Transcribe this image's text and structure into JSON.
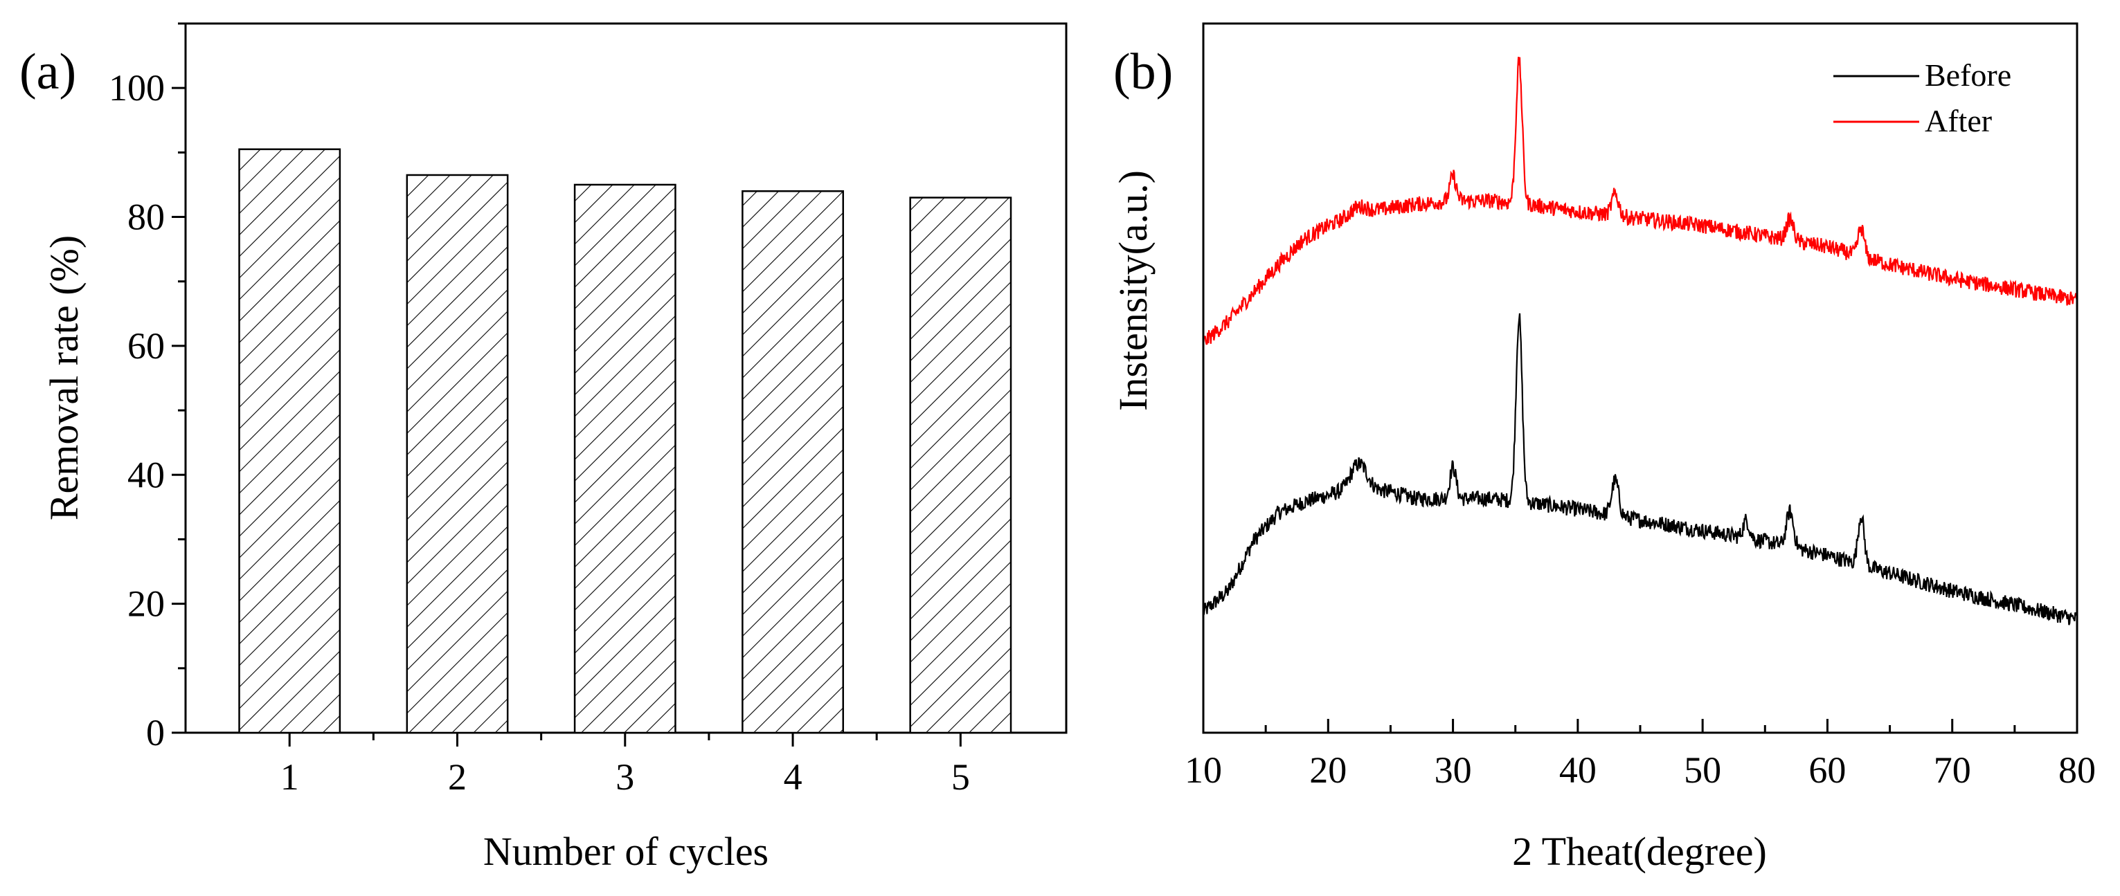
{
  "chart_data": [
    {
      "type": "bar",
      "panel_label": "(a)",
      "categories": [
        "1",
        "2",
        "3",
        "4",
        "5"
      ],
      "values": [
        90.5,
        86.5,
        85.0,
        84.0,
        83.0
      ],
      "xlabel": "Number of cycles",
      "ylabel": "Removal rate (%)",
      "ylim": [
        0,
        110
      ],
      "yticks": [
        "0",
        "20",
        "40",
        "60",
        "80",
        "100"
      ],
      "bar_fill": "hatched",
      "grid": false
    },
    {
      "type": "line",
      "panel_label": "(b)",
      "xlabel": "2 Theat(degree)",
      "ylabel": "Instensity(a.u.)",
      "xlim": [
        10,
        80
      ],
      "xticks": [
        "10",
        "20",
        "30",
        "40",
        "50",
        "60",
        "70",
        "80"
      ],
      "yticks_shown": false,
      "legend_position": "top-right",
      "grid": false,
      "series": [
        {
          "name": "Before",
          "color": "#000000",
          "offset": 0,
          "baseline": [
            [
              10,
              17
            ],
            [
              12,
              20
            ],
            [
              14,
              27
            ],
            [
              16,
              31
            ],
            [
              18,
              32.5
            ],
            [
              20,
              33.5
            ],
            [
              22,
              34.5
            ],
            [
              25,
              34
            ],
            [
              27,
              33
            ],
            [
              30,
              33
            ],
            [
              33,
              33
            ],
            [
              36,
              32.5
            ],
            [
              40,
              31.5
            ],
            [
              45,
              30
            ],
            [
              50,
              28.5
            ],
            [
              55,
              27
            ],
            [
              60,
              25
            ],
            [
              65,
              22.5
            ],
            [
              70,
              20
            ],
            [
              75,
              18
            ],
            [
              80,
              16
            ]
          ],
          "peaks": [
            [
              22.5,
              3.5,
              0.9
            ],
            [
              30.0,
              4.5,
              0.35
            ],
            [
              35.3,
              26,
              0.35
            ],
            [
              43.0,
              5,
              0.4
            ],
            [
              53.5,
              2.5,
              0.35
            ],
            [
              57.0,
              5,
              0.4
            ],
            [
              62.7,
              7,
              0.35
            ]
          ]
        },
        {
          "name": "After",
          "color": "#ff0000",
          "offset": 38,
          "baseline": [
            [
              10,
              17
            ],
            [
              12,
              20
            ],
            [
              14,
              24
            ],
            [
              16,
              28
            ],
            [
              18,
              31.5
            ],
            [
              20,
              33.5
            ],
            [
              22,
              35
            ],
            [
              25,
              36
            ],
            [
              27,
              36.5
            ],
            [
              30,
              37
            ],
            [
              33,
              37
            ],
            [
              36,
              36.5
            ],
            [
              40,
              35.5
            ],
            [
              45,
              34.5
            ],
            [
              50,
              33.5
            ],
            [
              55,
              32
            ],
            [
              60,
              30.5
            ],
            [
              65,
              28
            ],
            [
              70,
              26
            ],
            [
              75,
              24.5
            ],
            [
              80,
              23
            ]
          ],
          "peaks": [
            [
              22.5,
              1,
              0.9
            ],
            [
              30.0,
              3.5,
              0.35
            ],
            [
              35.3,
              20,
              0.35
            ],
            [
              43.0,
              3,
              0.4
            ],
            [
              57.0,
              3,
              0.4
            ],
            [
              62.7,
              4,
              0.35
            ]
          ]
        }
      ]
    }
  ]
}
